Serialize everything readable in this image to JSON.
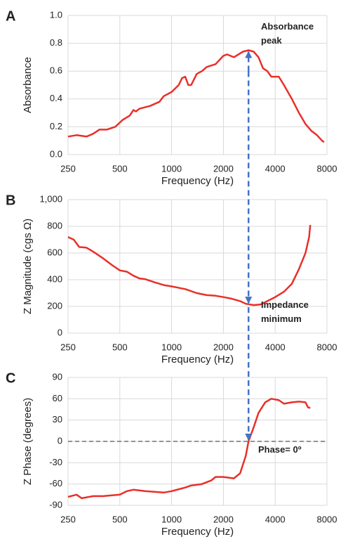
{
  "chart_data": [
    {
      "type": "line",
      "panel_label": "A",
      "x_label": "Frequency (Hz)",
      "y_label": "Absorbance",
      "log_x": true,
      "grid": true,
      "color": "#e8302a",
      "xlim": [
        250,
        8000
      ],
      "xticks": [
        250,
        500,
        1000,
        2000,
        4000,
        8000
      ],
      "ylim": [
        0,
        1
      ],
      "yticks": [
        {
          "value": 0,
          "label": "0.0"
        },
        0.2,
        0.4,
        0.6,
        0.8,
        {
          "value": 1,
          "label": "1.0"
        }
      ],
      "x": [
        250,
        280,
        320,
        350,
        380,
        420,
        470,
        520,
        570,
        600,
        620,
        650,
        750,
        850,
        900,
        1000,
        1100,
        1150,
        1200,
        1250,
        1300,
        1400,
        1500,
        1600,
        1800,
        2000,
        2100,
        2300,
        2600,
        2800,
        3000,
        3200,
        3400,
        3600,
        3800,
        4200,
        4500,
        5000,
        5500,
        6000,
        6500,
        7000,
        7500,
        7700
      ],
      "values": [
        0.13,
        0.14,
        0.13,
        0.15,
        0.18,
        0.18,
        0.2,
        0.25,
        0.28,
        0.32,
        0.31,
        0.33,
        0.35,
        0.38,
        0.42,
        0.45,
        0.5,
        0.55,
        0.56,
        0.5,
        0.5,
        0.58,
        0.6,
        0.63,
        0.65,
        0.71,
        0.72,
        0.7,
        0.74,
        0.75,
        0.74,
        0.7,
        0.62,
        0.6,
        0.56,
        0.56,
        0.5,
        0.4,
        0.3,
        0.22,
        0.17,
        0.14,
        0.1,
        0.09
      ],
      "annotation": "Absorbance peak",
      "arrow": {
        "x": 2800,
        "y": 0.75
      }
    },
    {
      "type": "line",
      "panel_label": "B",
      "x_label": "Frequency (Hz)",
      "y_label": "Z Magnitude (cgs Ω)",
      "log_x": true,
      "grid": true,
      "color": "#e8302a",
      "xlim": [
        250,
        8000
      ],
      "xticks": [
        250,
        500,
        1000,
        2000,
        4000,
        8000
      ],
      "ylim": [
        0,
        1000
      ],
      "yticks": [
        0,
        200,
        400,
        600,
        800,
        {
          "value": 1000,
          "label": "1,000"
        }
      ],
      "x": [
        250,
        270,
        290,
        320,
        350,
        400,
        450,
        500,
        550,
        600,
        650,
        700,
        800,
        900,
        1000,
        1200,
        1400,
        1600,
        1800,
        2000,
        2200,
        2500,
        2700,
        3000,
        3300,
        3600,
        4000,
        4500,
        5000,
        5500,
        6000,
        6300,
        6400
      ],
      "values": [
        720,
        700,
        645,
        640,
        610,
        560,
        510,
        470,
        460,
        430,
        410,
        405,
        380,
        360,
        350,
        330,
        300,
        285,
        280,
        270,
        260,
        240,
        220,
        210,
        215,
        240,
        270,
        310,
        370,
        480,
        600,
        720,
        810
      ],
      "annotation": "Impedance minimum",
      "arrow": {
        "x": 2800,
        "y": 215
      }
    },
    {
      "type": "line",
      "panel_label": "C",
      "x_label": "Frequency (Hz)",
      "y_label": "Z Phase (degrees)",
      "log_x": true,
      "grid": true,
      "color": "#e8302a",
      "xlim": [
        250,
        8000
      ],
      "xticks": [
        250,
        500,
        1000,
        2000,
        4000,
        8000
      ],
      "ylim": [
        -90,
        90
      ],
      "yticks": [
        -90,
        -60,
        -30,
        0,
        30,
        60,
        90
      ],
      "x": [
        250,
        280,
        300,
        350,
        400,
        500,
        550,
        600,
        700,
        900,
        1000,
        1200,
        1300,
        1500,
        1700,
        1800,
        2000,
        2300,
        2500,
        2700,
        2800,
        3000,
        3200,
        3500,
        3800,
        4200,
        4500,
        5000,
        5500,
        6000,
        6200,
        6400
      ],
      "values": [
        -78,
        -75,
        -80,
        -77,
        -77,
        -75,
        -70,
        -68,
        -70,
        -72,
        -70,
        -65,
        -62,
        -60,
        -55,
        -50,
        -50,
        -52,
        -45,
        -20,
        0,
        20,
        40,
        55,
        60,
        58,
        53,
        55,
        56,
        55,
        48,
        47
      ],
      "annotation": "Phase= 0º",
      "arrow": {
        "x": 2800,
        "y": 0
      },
      "hline": 0
    }
  ]
}
